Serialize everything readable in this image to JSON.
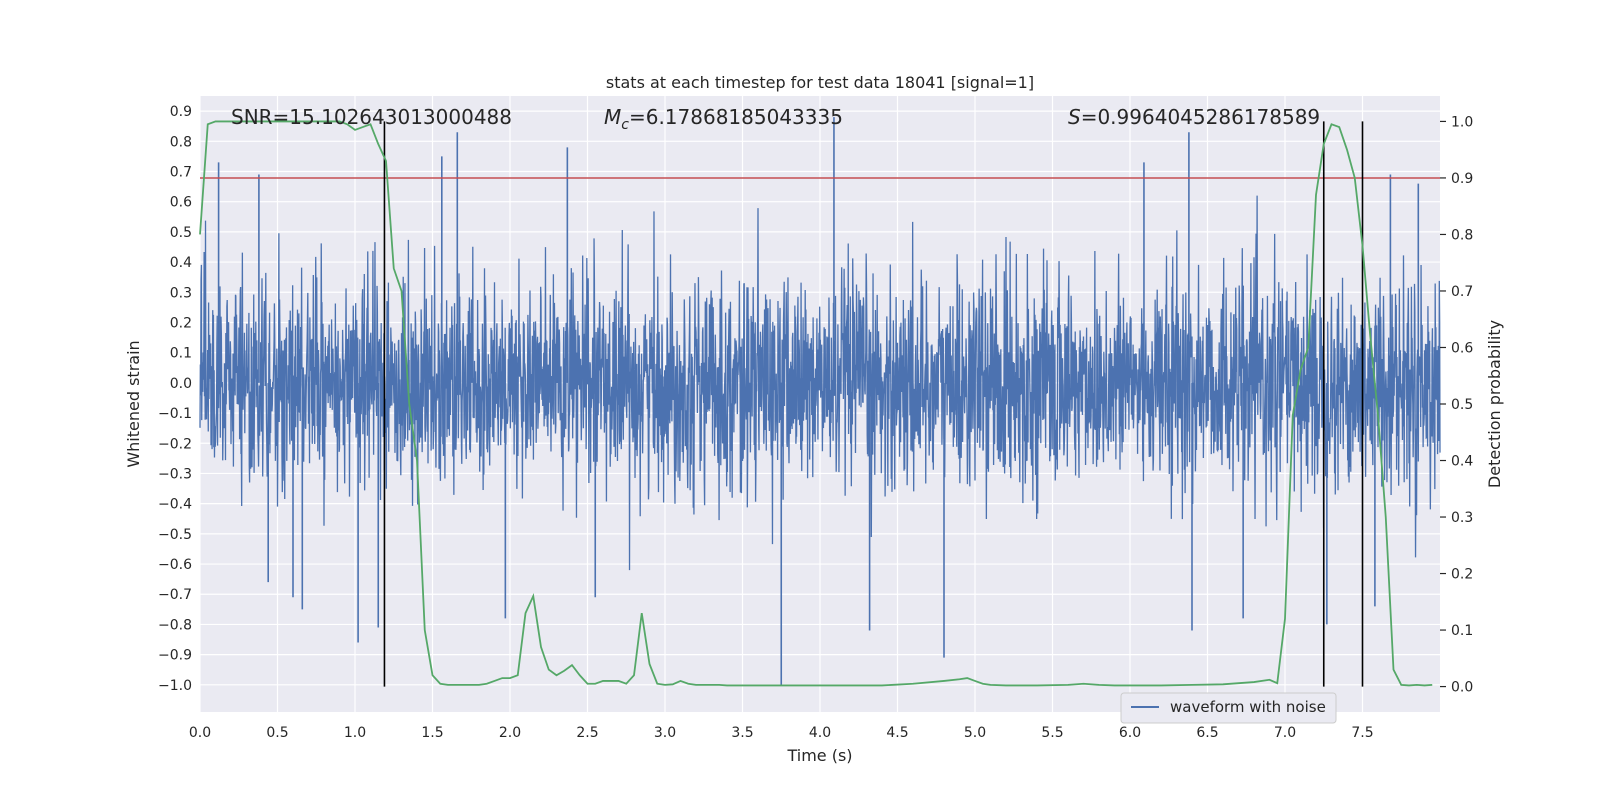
{
  "chart_data": {
    "type": "line",
    "title": "stats at each timestep for test data 18041 [signal=1]",
    "xlabel": "Time (s)",
    "ylabel_left": "Whitened strain",
    "ylabel_right": "Detection probability",
    "xlim": [
      0.0,
      8.0
    ],
    "ylim_left": [
      -1.09,
      0.95
    ],
    "ylim_right": [
      -0.045,
      1.045
    ],
    "xticks": [
      0.0,
      0.5,
      1.0,
      1.5,
      2.0,
      2.5,
      3.0,
      3.5,
      4.0,
      4.5,
      5.0,
      5.5,
      6.0,
      6.5,
      7.0,
      7.5
    ],
    "xtick_labels": [
      "0.0",
      "0.5",
      "1.0",
      "1.5",
      "2.0",
      "2.5",
      "3.0",
      "3.5",
      "4.0",
      "4.5",
      "5.0",
      "5.5",
      "6.0",
      "6.5",
      "7.0",
      "7.5"
    ],
    "yticks_left": [
      0.9,
      0.8,
      0.7,
      0.6,
      0.5,
      0.4,
      0.3,
      0.2,
      0.1,
      0.0,
      -0.1,
      -0.2,
      -0.3,
      -0.4,
      -0.5,
      -0.6,
      -0.7,
      -0.8,
      -0.9,
      -1.0
    ],
    "ytick_labels_left": [
      "0.9",
      "0.8",
      "0.7",
      "0.6",
      "0.5",
      "0.4",
      "0.3",
      "0.2",
      "0.1",
      "0.0",
      "−0.1",
      "−0.2",
      "−0.3",
      "−0.4",
      "−0.5",
      "−0.6",
      "−0.7",
      "−0.8",
      "−0.9",
      "−1.0"
    ],
    "yticks_right": [
      1.0,
      0.9,
      0.8,
      0.7,
      0.6,
      0.5,
      0.4,
      0.3,
      0.2,
      0.1,
      0.0
    ],
    "ytick_labels_right": [
      "1.0",
      "0.9",
      "0.8",
      "0.7",
      "0.6",
      "0.5",
      "0.4",
      "0.3",
      "0.2",
      "0.1",
      "0.0"
    ],
    "grid": true,
    "legend_position": "lower-right",
    "annotations": {
      "snr": "SNR=15.102643013000488",
      "mc_prefix": "M",
      "mc_sub": "c",
      "mc_value": "=6.17868185043335",
      "s_prefix": "S",
      "s_value": "=0.9964045286178589"
    },
    "threshold_line": {
      "axis": "right",
      "y": 0.9,
      "color": "#c44e52"
    },
    "vertical_lines": {
      "x": [
        1.19,
        7.25,
        7.5
      ],
      "color": "#000000"
    },
    "series": [
      {
        "name": "waveform with noise",
        "axis": "left",
        "color": "#4c72b0",
        "noise_sigma": 0.17,
        "extremes": [
          {
            "x": 0.12,
            "y": 0.73
          },
          {
            "x": 0.38,
            "y": 0.69
          },
          {
            "x": 0.44,
            "y": -0.66
          },
          {
            "x": 0.6,
            "y": -0.71
          },
          {
            "x": 0.66,
            "y": -0.75
          },
          {
            "x": 1.02,
            "y": -0.86
          },
          {
            "x": 1.15,
            "y": -0.81
          },
          {
            "x": 1.56,
            "y": 0.75
          },
          {
            "x": 1.66,
            "y": 0.83
          },
          {
            "x": 1.97,
            "y": -0.78
          },
          {
            "x": 2.37,
            "y": 0.78
          },
          {
            "x": 2.55,
            "y": -0.71
          },
          {
            "x": 3.75,
            "y": -1.0
          },
          {
            "x": 4.09,
            "y": 0.88
          },
          {
            "x": 4.32,
            "y": -0.82
          },
          {
            "x": 4.8,
            "y": -0.91
          },
          {
            "x": 6.09,
            "y": 0.73
          },
          {
            "x": 6.38,
            "y": 0.83
          },
          {
            "x": 6.4,
            "y": -0.82
          },
          {
            "x": 6.73,
            "y": -0.78
          },
          {
            "x": 7.27,
            "y": -0.8
          },
          {
            "x": 7.58,
            "y": -0.74
          },
          {
            "x": 7.68,
            "y": 0.69
          },
          {
            "x": 7.86,
            "y": 0.66
          }
        ]
      },
      {
        "name": "",
        "axis": "right",
        "color": "#55a868",
        "x": [
          0.0,
          0.05,
          0.1,
          0.15,
          0.2,
          0.3,
          0.4,
          0.5,
          0.6,
          0.7,
          0.8,
          0.9,
          0.95,
          1.0,
          1.05,
          1.1,
          1.15,
          1.2,
          1.25,
          1.3,
          1.35,
          1.4,
          1.45,
          1.5,
          1.55,
          1.6,
          1.7,
          1.8,
          1.85,
          1.9,
          1.95,
          2.0,
          2.05,
          2.1,
          2.15,
          2.2,
          2.25,
          2.3,
          2.35,
          2.4,
          2.45,
          2.5,
          2.55,
          2.6,
          2.65,
          2.7,
          2.75,
          2.8,
          2.85,
          2.9,
          2.95,
          3.0,
          3.05,
          3.1,
          3.15,
          3.2,
          3.25,
          3.3,
          3.35,
          3.4,
          3.5,
          3.6,
          3.7,
          3.8,
          3.9,
          4.0,
          4.2,
          4.4,
          4.6,
          4.8,
          4.9,
          4.95,
          5.0,
          5.05,
          5.1,
          5.2,
          5.4,
          5.6,
          5.7,
          5.8,
          5.9,
          6.0,
          6.1,
          6.2,
          6.4,
          6.6,
          6.8,
          6.9,
          6.95,
          7.0,
          7.05,
          7.1,
          7.15,
          7.2,
          7.25,
          7.3,
          7.35,
          7.4,
          7.45,
          7.5,
          7.55,
          7.6,
          7.65,
          7.7,
          7.75,
          7.8,
          7.85,
          7.9,
          7.95
        ],
        "y": [
          0.8,
          0.995,
          1.0,
          1.0,
          1.0,
          1.0,
          1.0,
          1.0,
          1.0,
          1.0,
          1.0,
          1.0,
          0.995,
          0.985,
          0.99,
          0.995,
          0.96,
          0.93,
          0.74,
          0.7,
          0.5,
          0.4,
          0.1,
          0.02,
          0.005,
          0.003,
          0.003,
          0.003,
          0.005,
          0.01,
          0.015,
          0.015,
          0.02,
          0.13,
          0.16,
          0.07,
          0.03,
          0.02,
          0.028,
          0.038,
          0.02,
          0.005,
          0.005,
          0.01,
          0.01,
          0.01,
          0.005,
          0.02,
          0.13,
          0.04,
          0.005,
          0.003,
          0.004,
          0.01,
          0.005,
          0.003,
          0.003,
          0.003,
          0.003,
          0.002,
          0.002,
          0.002,
          0.002,
          0.002,
          0.002,
          0.002,
          0.002,
          0.002,
          0.005,
          0.01,
          0.013,
          0.015,
          0.01,
          0.005,
          0.003,
          0.002,
          0.002,
          0.003,
          0.005,
          0.003,
          0.002,
          0.002,
          0.002,
          0.002,
          0.003,
          0.004,
          0.008,
          0.012,
          0.006,
          0.12,
          0.48,
          0.56,
          0.6,
          0.87,
          0.96,
          0.995,
          0.99,
          0.95,
          0.9,
          0.78,
          0.62,
          0.48,
          0.3,
          0.03,
          0.003,
          0.002,
          0.003,
          0.002,
          0.003
        ]
      }
    ]
  }
}
